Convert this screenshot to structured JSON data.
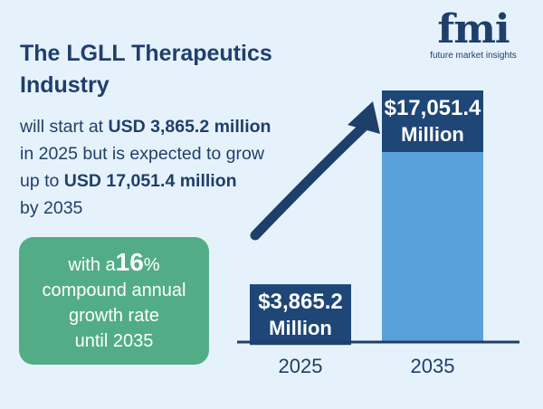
{
  "header": {
    "title_line1": "The LGLL Therapeutics",
    "title_line2": "Industry"
  },
  "description": {
    "l1_pre": "will start at ",
    "l1_bold": "USD 3,865.2 million",
    "l2": "in 2025 but is expected to grow",
    "l3_pre": "up to ",
    "l3_bold": "USD 17,051.4 million",
    "l4": "by 2035"
  },
  "cagr": {
    "pre": "with a",
    "value": "16",
    "unit": "%",
    "line2": "compound annual",
    "line3": "growth rate",
    "line4": "until 2035"
  },
  "logo": {
    "mark": "fmi",
    "subtitle": "future market insights"
  },
  "colors": {
    "background": "#e6f2fb",
    "navy": "#1f3f6b",
    "bar_light": "#5aa0da",
    "bar_dark": "#1e4677",
    "green": "#52ad86"
  },
  "chart_data": {
    "type": "bar",
    "categories": [
      "2025",
      "2035"
    ],
    "values": [
      3865.2,
      17051.4
    ],
    "value_labels": [
      [
        "$3,865.2",
        "Million"
      ],
      [
        "$17,051.4",
        "Million"
      ]
    ],
    "unit": "USD million",
    "title": "",
    "xlabel": "",
    "ylabel": "",
    "grid": false,
    "legend": "none",
    "annotations": [
      "upward growth arrow"
    ]
  }
}
